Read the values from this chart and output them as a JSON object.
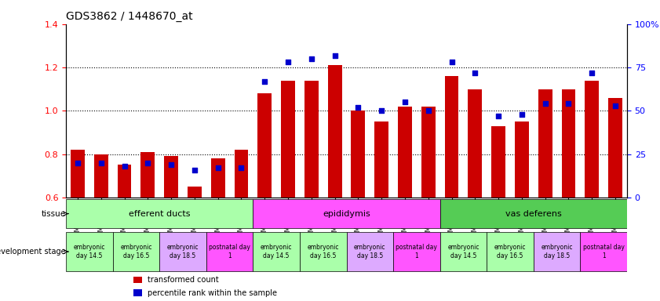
{
  "title": "GDS3862 / 1448670_at",
  "samples": [
    "GSM560923",
    "GSM560924",
    "GSM560925",
    "GSM560926",
    "GSM560927",
    "GSM560928",
    "GSM560929",
    "GSM560930",
    "GSM560931",
    "GSM560932",
    "GSM560933",
    "GSM560934",
    "GSM560935",
    "GSM560936",
    "GSM560937",
    "GSM560938",
    "GSM560939",
    "GSM560940",
    "GSM560941",
    "GSM560942",
    "GSM560943",
    "GSM560944",
    "GSM560945",
    "GSM560946"
  ],
  "transformed_count": [
    0.82,
    0.8,
    0.75,
    0.81,
    0.79,
    0.65,
    0.78,
    0.82,
    1.08,
    1.14,
    1.14,
    1.21,
    1.0,
    0.95,
    1.02,
    1.02,
    1.16,
    1.1,
    0.93,
    0.95,
    1.1,
    1.1,
    1.14,
    1.06
  ],
  "percentile_rank": [
    20,
    20,
    18,
    20,
    19,
    16,
    17,
    17,
    67,
    78,
    80,
    82,
    52,
    50,
    55,
    50,
    78,
    72,
    47,
    48,
    54,
    54,
    72,
    53
  ],
  "ylim_left": [
    0.6,
    1.4
  ],
  "ylim_right": [
    0,
    100
  ],
  "bar_color": "#cc0000",
  "dot_color": "#0000cc",
  "yticks_left": [
    0.6,
    0.8,
    1.0,
    1.2,
    1.4
  ],
  "yticks_right": [
    0,
    25,
    50,
    75,
    100
  ],
  "ytick_labels_right": [
    "0",
    "25",
    "50",
    "75",
    "100%"
  ],
  "tissue_groups": [
    {
      "label": "efferent ducts",
      "start": 0,
      "end": 7,
      "color": "#aaffaa"
    },
    {
      "label": "epididymis",
      "start": 8,
      "end": 15,
      "color": "#ff55ff"
    },
    {
      "label": "vas deferens",
      "start": 16,
      "end": 23,
      "color": "#55cc55"
    }
  ],
  "dev_stage_groups": [
    {
      "label": "embryonic\nday 14.5",
      "start": 0,
      "end": 1,
      "color": "#aaffaa"
    },
    {
      "label": "embryonic\nday 16.5",
      "start": 2,
      "end": 3,
      "color": "#aaffaa"
    },
    {
      "label": "embryonic\nday 18.5",
      "start": 4,
      "end": 5,
      "color": "#ddaaff"
    },
    {
      "label": "postnatal day\n1",
      "start": 6,
      "end": 7,
      "color": "#ff55ff"
    },
    {
      "label": "embryonic\nday 14.5",
      "start": 8,
      "end": 9,
      "color": "#aaffaa"
    },
    {
      "label": "embryonic\nday 16.5",
      "start": 10,
      "end": 11,
      "color": "#aaffaa"
    },
    {
      "label": "embryonic\nday 18.5",
      "start": 12,
      "end": 13,
      "color": "#ddaaff"
    },
    {
      "label": "postnatal day\n1",
      "start": 14,
      "end": 15,
      "color": "#ff55ff"
    },
    {
      "label": "embryonic\nday 14.5",
      "start": 16,
      "end": 17,
      "color": "#aaffaa"
    },
    {
      "label": "embryonic\nday 16.5",
      "start": 18,
      "end": 19,
      "color": "#aaffaa"
    },
    {
      "label": "embryonic\nday 18.5",
      "start": 20,
      "end": 21,
      "color": "#ddaaff"
    },
    {
      "label": "postnatal day\n1",
      "start": 22,
      "end": 23,
      "color": "#ff55ff"
    }
  ],
  "legend_bar_color": "#cc0000",
  "legend_dot_color": "#0000cc",
  "legend_bar_label": "transformed count",
  "legend_dot_label": "percentile rank within the sample",
  "dotted_lines": [
    0.8,
    1.0,
    1.2
  ],
  "bar_bottom": 0.6
}
